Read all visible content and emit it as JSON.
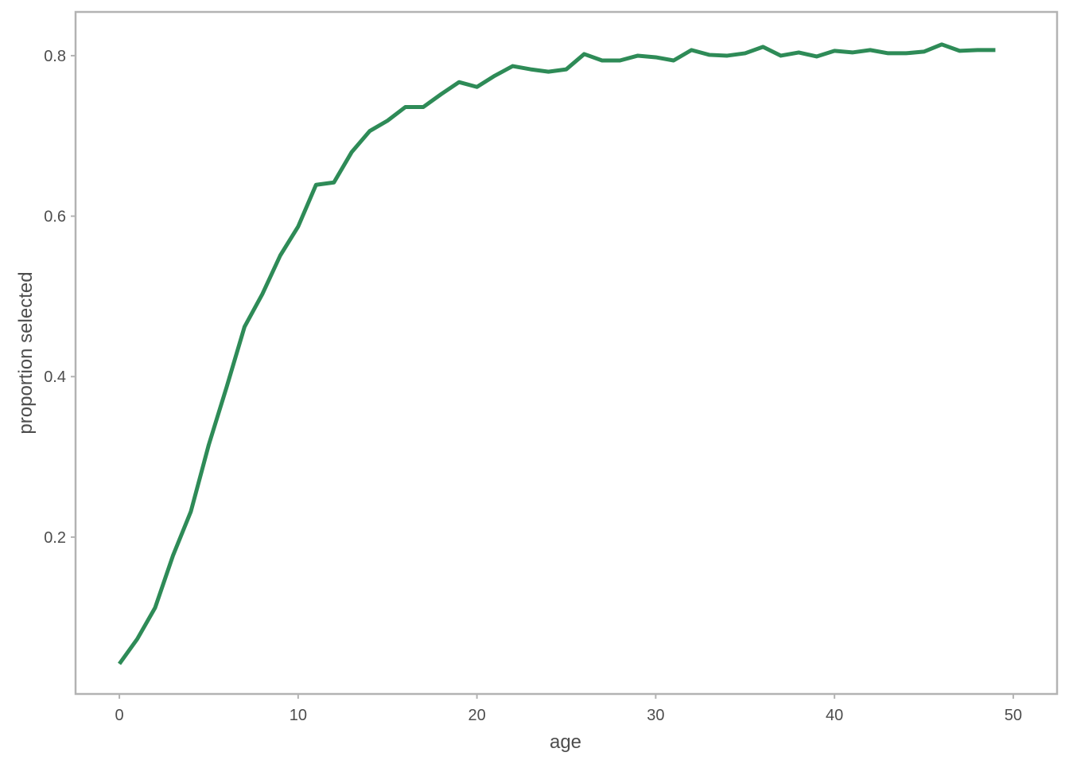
{
  "chart_data": {
    "type": "line",
    "title": "",
    "xlabel": "age",
    "ylabel": "proportion selected",
    "xlim": [
      -2.45,
      52.45
    ],
    "ylim": [
      0.0045,
      0.8545
    ],
    "xticks": [
      0,
      10,
      20,
      30,
      40,
      50
    ],
    "xtick_labels": [
      "0",
      "10",
      "20",
      "30",
      "40",
      "50"
    ],
    "yticks": [
      0.2,
      0.4,
      0.6,
      0.8
    ],
    "ytick_labels": [
      "0.2",
      "0.4",
      "0.6",
      "0.8"
    ],
    "grid": false,
    "legend": "none",
    "series": [
      {
        "color": "#2e8b57",
        "x": [
          0,
          1,
          2,
          3,
          4,
          5,
          6,
          7,
          8,
          9,
          10,
          11,
          12,
          13,
          14,
          15,
          16,
          17,
          18,
          19,
          20,
          21,
          22,
          23,
          24,
          25,
          26,
          27,
          28,
          29,
          30,
          31,
          32,
          33,
          34,
          35,
          36,
          37,
          38,
          39,
          40,
          41,
          42,
          43,
          44,
          45,
          46,
          47,
          48,
          49
        ],
        "y": [
          0.042,
          0.073,
          0.112,
          0.177,
          0.232,
          0.315,
          0.387,
          0.462,
          0.503,
          0.551,
          0.587,
          0.639,
          0.642,
          0.68,
          0.706,
          0.719,
          0.736,
          0.736,
          0.752,
          0.767,
          0.761,
          0.775,
          0.787,
          0.783,
          0.78,
          0.783,
          0.802,
          0.794,
          0.794,
          0.8,
          0.798,
          0.794,
          0.807,
          0.801,
          0.8,
          0.803,
          0.811,
          0.8,
          0.804,
          0.799,
          0.806,
          0.804,
          0.807,
          0.803,
          0.803,
          0.805,
          0.814,
          0.806,
          0.807,
          0.807
        ]
      }
    ]
  }
}
